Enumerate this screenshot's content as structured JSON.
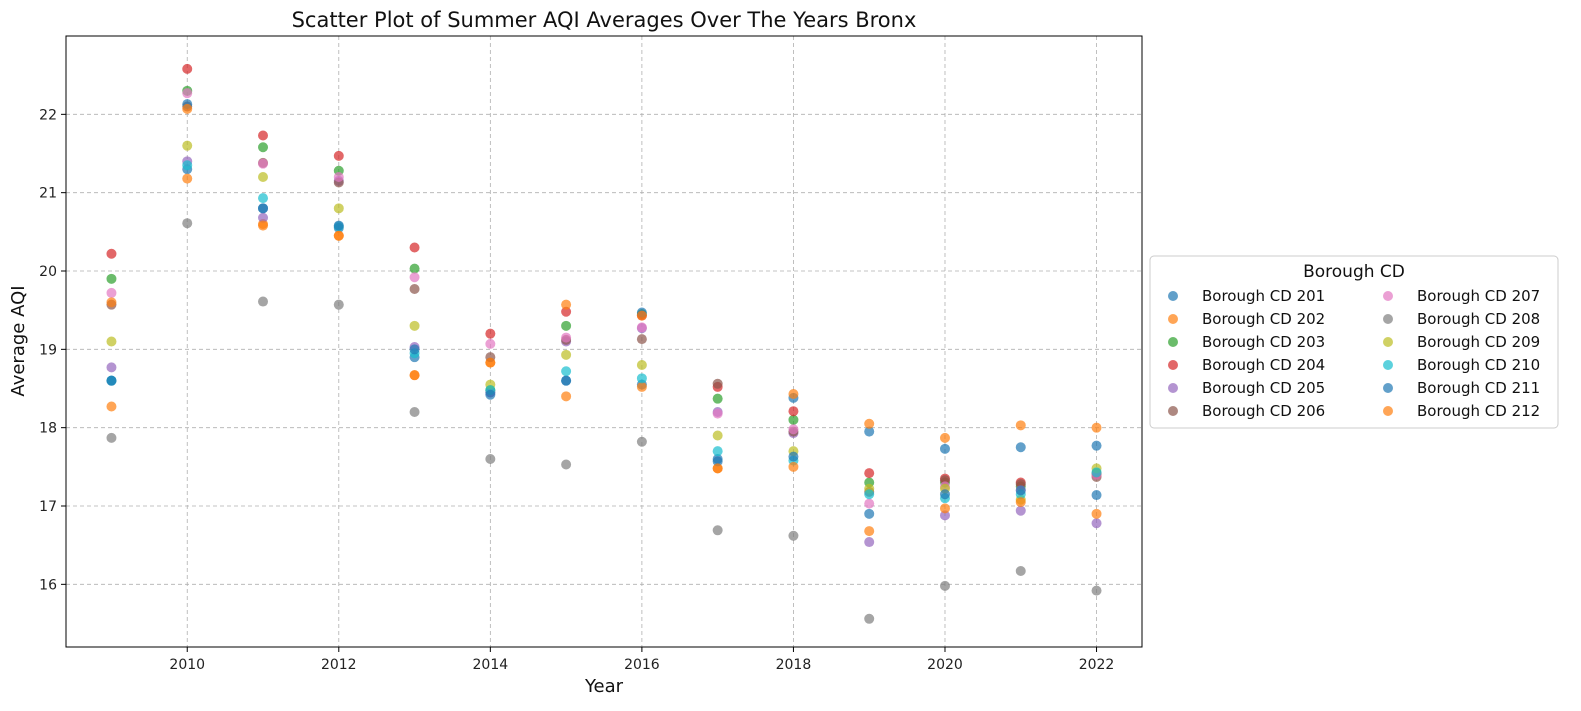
{
  "chart_data": {
    "type": "scatter",
    "title": "Scatter Plot of Summer AQI Averages Over The Years Bronx",
    "xlabel": "Year",
    "ylabel": "Average AQI",
    "xlim": [
      2008.4,
      2022.6
    ],
    "ylim": [
      15.2,
      23.0
    ],
    "xticks": [
      2010,
      2012,
      2014,
      2016,
      2018,
      2020,
      2022
    ],
    "yticks": [
      16,
      17,
      18,
      19,
      20,
      21,
      22
    ],
    "grid": true,
    "legend": {
      "title": "Borough CD",
      "placement": "center-right-outside",
      "columns": 2
    },
    "x": [
      2009,
      2010,
      2011,
      2012,
      2013,
      2014,
      2015,
      2016,
      2017,
      2018,
      2019,
      2020,
      2021,
      2022
    ],
    "series": [
      {
        "name": "Borough CD 201",
        "color": "#1f77b4",
        "values": [
          18.6,
          21.3,
          20.8,
          20.55,
          18.9,
          18.45,
          18.6,
          18.55,
          17.6,
          18.38,
          17.95,
          17.73,
          17.75,
          17.77
        ]
      },
      {
        "name": "Borough CD 202",
        "color": "#ff7f0e",
        "values": [
          18.27,
          21.18,
          20.6,
          20.45,
          18.67,
          18.83,
          18.4,
          18.52,
          17.48,
          18.43,
          18.05,
          17.87,
          18.03,
          18.0
        ]
      },
      {
        "name": "Borough CD 203",
        "color": "#2ca02c",
        "values": [
          19.9,
          22.3,
          21.58,
          21.28,
          20.03,
          18.48,
          19.3,
          19.45,
          18.37,
          18.1,
          17.3,
          17.3,
          17.25,
          17.42
        ]
      },
      {
        "name": "Borough CD 204",
        "color": "#d62728",
        "values": [
          20.22,
          22.58,
          21.73,
          21.47,
          20.3,
          19.2,
          19.48,
          19.43,
          18.52,
          18.21,
          17.42,
          17.35,
          17.3,
          17.4
        ]
      },
      {
        "name": "Borough CD 205",
        "color": "#9467bd",
        "values": [
          18.77,
          21.4,
          20.68,
          21.15,
          19.03,
          18.45,
          19.1,
          19.27,
          18.2,
          17.93,
          16.54,
          16.88,
          16.94,
          16.78
        ]
      },
      {
        "name": "Borough CD 206",
        "color": "#8c564b",
        "values": [
          19.57,
          22.1,
          21.38,
          21.13,
          19.77,
          18.9,
          19.12,
          19.13,
          18.56,
          17.95,
          17.18,
          17.33,
          17.28,
          17.37
        ]
      },
      {
        "name": "Borough CD 207",
        "color": "#e377c2",
        "values": [
          19.72,
          22.27,
          21.37,
          21.2,
          19.92,
          19.07,
          19.15,
          19.28,
          18.18,
          17.98,
          17.03,
          17.25,
          17.2,
          17.4
        ]
      },
      {
        "name": "Borough CD 208",
        "color": "#7f7f7f",
        "values": [
          17.87,
          20.61,
          19.61,
          19.57,
          18.2,
          17.6,
          17.53,
          17.82,
          16.69,
          16.62,
          15.56,
          15.98,
          16.17,
          15.92
        ]
      },
      {
        "name": "Borough CD 209",
        "color": "#bcbd22",
        "values": [
          19.1,
          21.6,
          21.2,
          20.8,
          19.3,
          18.55,
          18.93,
          18.8,
          17.9,
          17.7,
          17.22,
          17.22,
          17.08,
          17.48
        ]
      },
      {
        "name": "Borough CD 210",
        "color": "#17becf",
        "values": [
          18.6,
          21.35,
          20.93,
          20.57,
          18.95,
          18.48,
          18.72,
          18.63,
          17.7,
          17.58,
          17.15,
          17.1,
          17.15,
          17.43
        ]
      },
      {
        "name": "Borough CD 211",
        "color": "#1f77b4",
        "values": [
          18.6,
          22.13,
          20.8,
          20.58,
          19.0,
          18.42,
          18.6,
          19.47,
          17.57,
          17.63,
          16.9,
          17.15,
          17.2,
          17.14
        ]
      },
      {
        "name": "Borough CD 212",
        "color": "#ff7f0e",
        "values": [
          19.6,
          22.07,
          20.58,
          20.45,
          18.67,
          18.83,
          19.57,
          19.43,
          17.48,
          17.5,
          16.68,
          16.97,
          17.05,
          16.9
        ]
      }
    ]
  }
}
